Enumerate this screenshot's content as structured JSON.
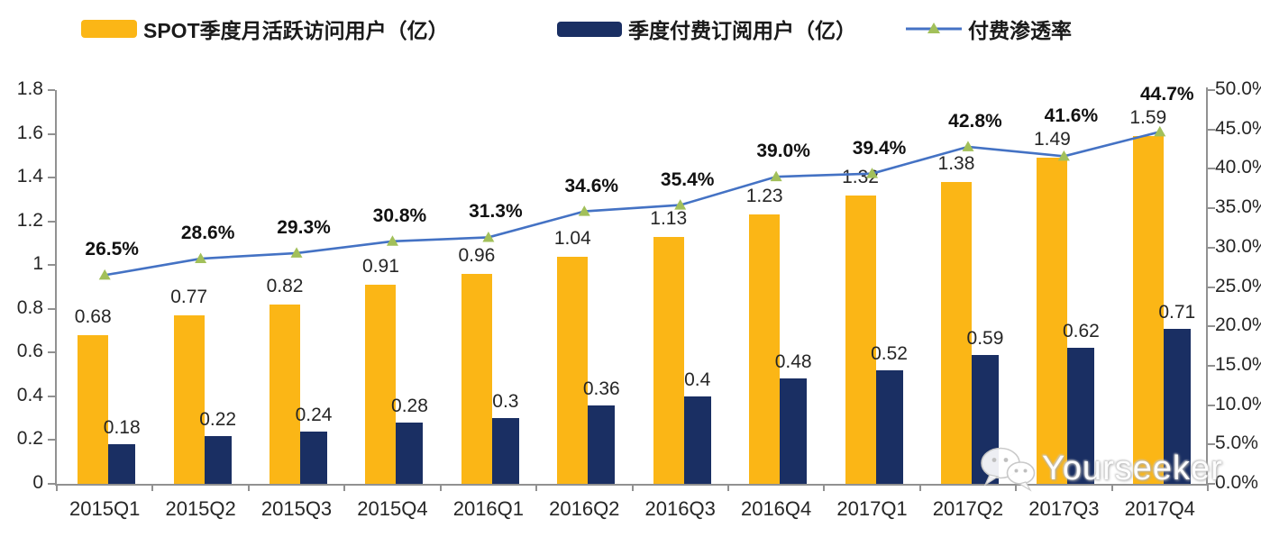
{
  "chart_data": {
    "type": "bar",
    "subtype": "grouped-bars-with-line-overlay",
    "title": "",
    "categories": [
      "2015Q1",
      "2015Q2",
      "2015Q3",
      "2015Q4",
      "2016Q1",
      "2016Q2",
      "2016Q3",
      "2016Q4",
      "2017Q1",
      "2017Q2",
      "2017Q3",
      "2017Q4"
    ],
    "series": [
      {
        "name": "SPOT季度月活跃访问用户（亿）",
        "type": "bar",
        "axis": "left",
        "color": "#FBB616",
        "values": [
          0.68,
          0.77,
          0.82,
          0.91,
          0.96,
          1.04,
          1.13,
          1.23,
          1.32,
          1.38,
          1.49,
          1.59
        ],
        "labels": [
          "0.68",
          "0.77",
          "0.82",
          "0.91",
          "0.96",
          "1.04",
          "1.13",
          "1.23",
          "1.32",
          "1.38",
          "1.49",
          "1.59"
        ]
      },
      {
        "name": "季度付费订阅用户（亿）",
        "type": "bar",
        "axis": "left",
        "color": "#1A2F63",
        "values": [
          0.18,
          0.22,
          0.24,
          0.28,
          0.3,
          0.36,
          0.4,
          0.48,
          0.52,
          0.59,
          0.62,
          0.71
        ],
        "labels": [
          "0.18",
          "0.22",
          "0.24",
          "0.28",
          "0.3",
          "0.36",
          "0.4",
          "0.48",
          "0.52",
          "0.59",
          "0.62",
          "0.71"
        ]
      },
      {
        "name": "付费渗透率",
        "type": "line",
        "axis": "right",
        "color": "#4472C4",
        "marker": "triangle",
        "marker_color": "#A2C05A",
        "values": [
          26.5,
          28.6,
          29.3,
          30.8,
          31.3,
          34.6,
          35.4,
          39.0,
          39.4,
          42.8,
          41.6,
          44.7
        ],
        "labels": [
          "26.5%",
          "28.6%",
          "29.3%",
          "30.8%",
          "31.3%",
          "34.6%",
          "35.4%",
          "39.0%",
          "39.4%",
          "42.8%",
          "41.6%",
          "44.7%"
        ]
      }
    ],
    "left_axis": {
      "min": 0,
      "max": 1.8,
      "ticks": [
        "1.8",
        "1.6",
        "1.4",
        "1.2",
        "1",
        "0.8",
        "0.6",
        "0.4",
        "0.2",
        "0"
      ]
    },
    "right_axis": {
      "min": 0,
      "max": 50,
      "ticks": [
        "50.0%",
        "45.0%",
        "40.0%",
        "35.0%",
        "30.0%",
        "25.0%",
        "20.0%",
        "15.0%",
        "10.0%",
        "5.0%",
        "0.0%"
      ]
    },
    "grid": false,
    "legend_position": "top",
    "axis_color": "#919191"
  },
  "watermark": {
    "text": "Yourseeker",
    "icon": "wechat-icon"
  }
}
